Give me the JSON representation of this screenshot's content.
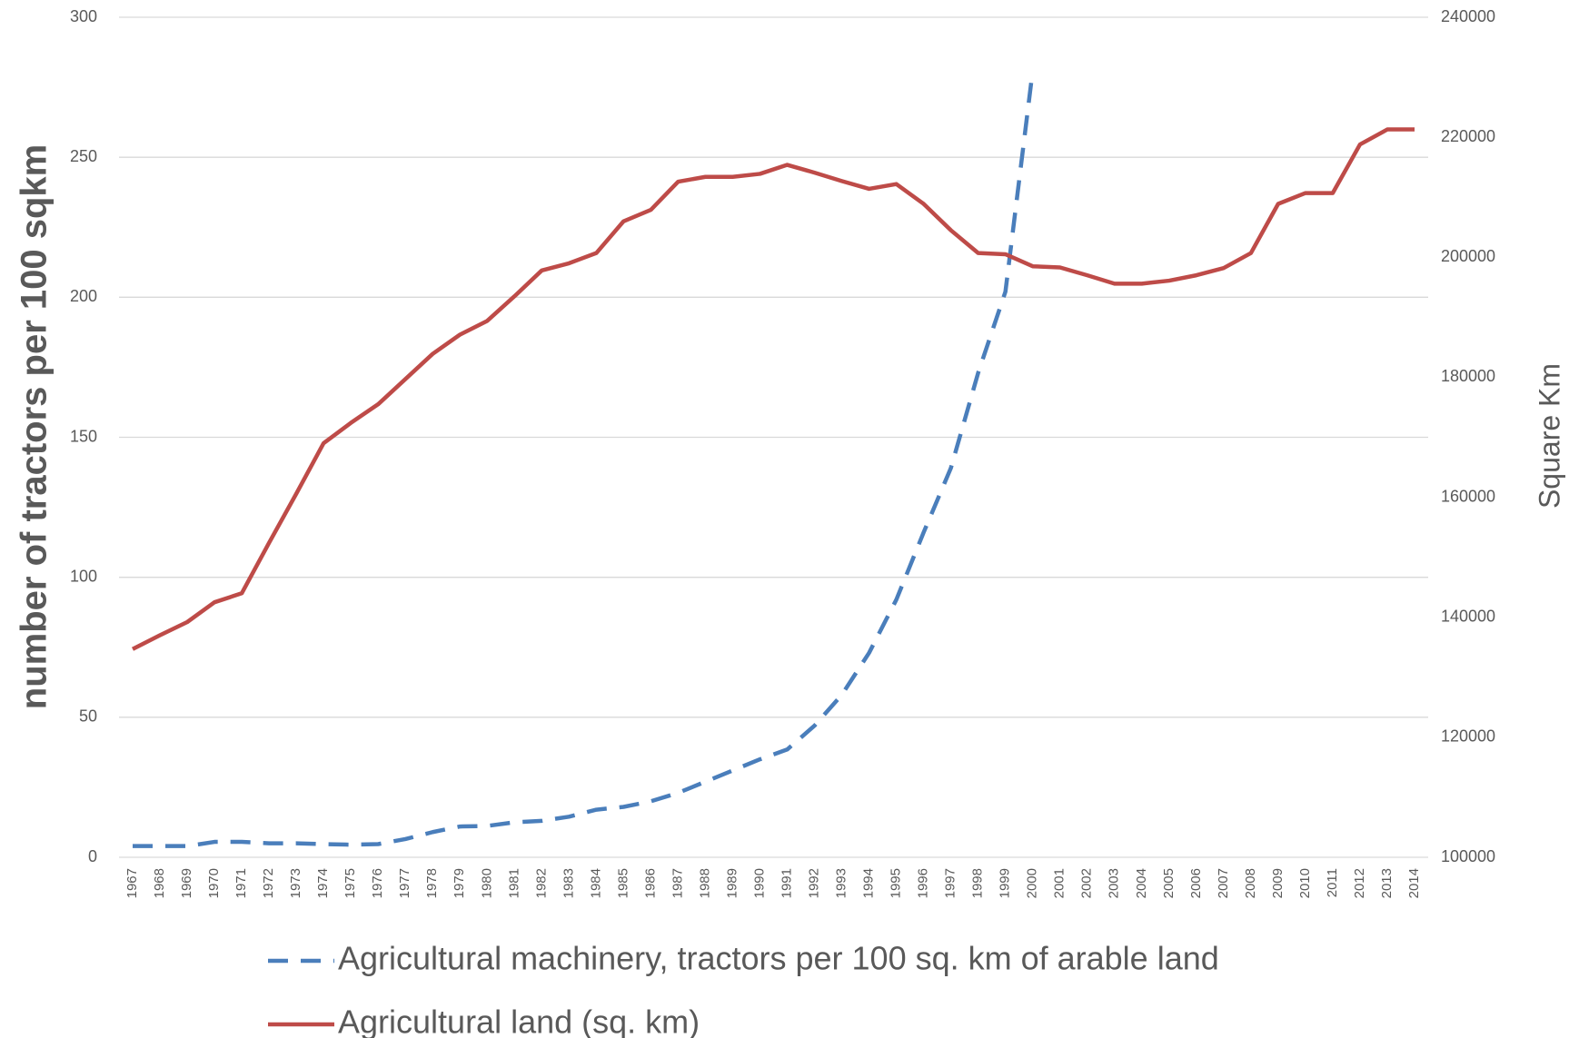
{
  "chart_data": {
    "type": "line",
    "y_label": "number of tractors per 100 sqkm",
    "y2_label": "Square Km",
    "categories": [
      "1967",
      "1968",
      "1969",
      "1970",
      "1971",
      "1972",
      "1973",
      "1974",
      "1975",
      "1976",
      "1977",
      "1978",
      "1979",
      "1980",
      "1981",
      "1982",
      "1983",
      "1984",
      "1985",
      "1986",
      "1987",
      "1988",
      "1989",
      "1990",
      "1991",
      "1992",
      "1993",
      "1994",
      "1995",
      "1996",
      "1997",
      "1998",
      "1999",
      "2000",
      "2001",
      "2002",
      "2003",
      "2004",
      "2005",
      "2006",
      "2007",
      "2008",
      "2009",
      "2010",
      "2011",
      "2012",
      "2013",
      "2014"
    ],
    "series": [
      {
        "name": "Agricultural machinery, tractors per 100 sq. km of arable land",
        "color": "#4a7ebb",
        "dashed": true,
        "values": [
          4,
          4,
          4,
          5.5,
          5.5,
          5,
          5,
          4.7,
          4.5,
          4.7,
          6.5,
          9,
          11,
          11.2,
          12.5,
          13,
          14.5,
          17,
          18,
          20,
          23,
          27,
          31,
          35,
          38.5,
          47,
          58,
          73,
          92,
          116,
          139,
          173,
          202,
          281,
          null,
          null,
          null,
          null,
          null,
          null,
          null,
          null,
          null,
          null,
          null,
          null,
          null,
          null
        ]
      },
      {
        "name": "Agricultural land (sq. km)",
        "color": "#be4b48",
        "axis": "y2",
        "values": [
          134700,
          137000,
          139200,
          142500,
          144000,
          152400,
          160600,
          169000,
          172400,
          175500,
          179700,
          183900,
          187100,
          189400,
          193500,
          197800,
          199000,
          200700,
          206000,
          207900,
          212600,
          213400,
          213400,
          213900,
          215400,
          214100,
          212700,
          211400,
          212200,
          208900,
          204500,
          200700,
          200500,
          198500,
          198300,
          197000,
          195600,
          195600,
          196100,
          197000,
          198200,
          200700,
          208900,
          210700,
          210700,
          218800,
          221300,
          221300
        ]
      }
    ],
    "ylim": [
      0,
      300
    ],
    "yticks": [
      0,
      50,
      100,
      150,
      200,
      250,
      300
    ],
    "y2lim": [
      100000,
      240000
    ],
    "y2ticks": [
      100000,
      120000,
      140000,
      160000,
      180000,
      200000,
      220000,
      240000
    ],
    "grid": true,
    "legend": "bottom"
  }
}
